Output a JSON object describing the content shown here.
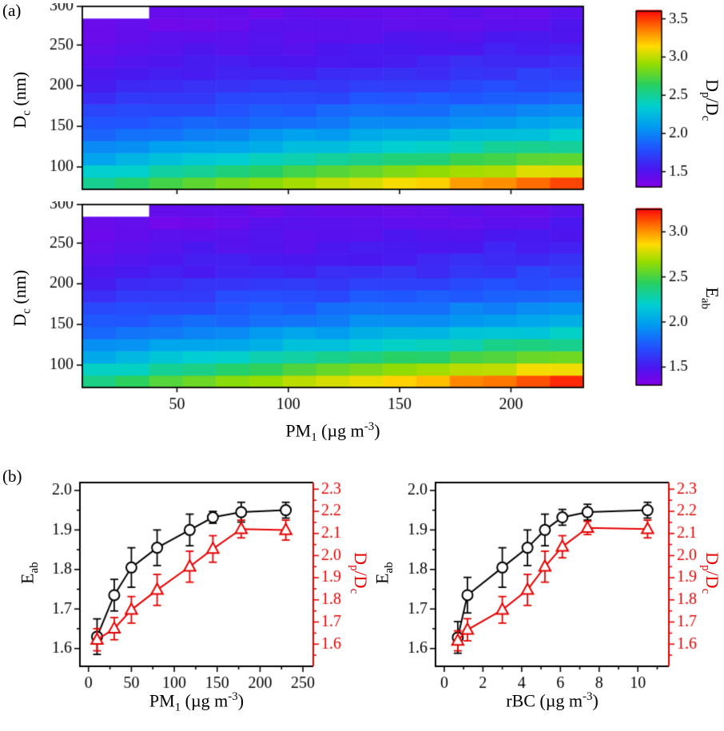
{
  "panel_labels": {
    "a": "(a)",
    "b": "(b)"
  },
  "labels": {
    "dc_main": "D",
    "dc_sub": "c",
    "dc_units": " (nm)",
    "eab_main": "E",
    "eab_sub": "ab",
    "dpdc_d": "D",
    "dpdc_p": "p",
    "dpdc_slash": "/",
    "dpdc_d2": "D",
    "dpdc_c": "c",
    "pm1_main": "PM",
    "pm1_sub": "1",
    "rbc_main": "rBC",
    "units_open": " (µg m",
    "units_sup": "-3",
    "units_close": ")"
  },
  "colors": {
    "axis_red": "#e60000",
    "axis_black": "#000000"
  },
  "chart_data": [
    {
      "type": "heatmap",
      "name": "dpdc_vs_pm1_and_dc",
      "colorbar_label": "Dp/Dc",
      "x_label": "PM1 (ug m-3)",
      "y_label": "Dc (nm)",
      "x": [
        15,
        30,
        45,
        60,
        75,
        90,
        105,
        120,
        135,
        150,
        165,
        180,
        195,
        210,
        225
      ],
      "y": [
        80,
        95,
        110,
        125,
        140,
        155,
        170,
        185,
        200,
        215,
        230,
        245,
        260,
        275,
        290
      ],
      "vmin": 1.3,
      "vmax": 3.6,
      "xlim": [
        7.5,
        232.5
      ],
      "ylim": [
        72.5,
        297.5
      ],
      "x_ticks": [
        50,
        100,
        150,
        200
      ],
      "y_ticks": [
        100,
        150,
        200,
        250,
        300
      ],
      "colorbar_ticks": [
        1.5,
        2.0,
        2.5,
        3.0,
        3.5
      ],
      "values": [
        [
          2.55,
          2.62,
          2.68,
          2.75,
          2.81,
          2.88,
          2.94,
          3.01,
          3.07,
          3.14,
          3.2,
          3.27,
          3.33,
          3.4,
          3.46
        ],
        [
          2.34,
          2.39,
          2.45,
          2.5,
          2.55,
          2.61,
          2.66,
          2.72,
          2.77,
          2.82,
          2.88,
          2.93,
          2.98,
          3.04,
          3.09
        ],
        [
          2.16,
          2.21,
          2.25,
          2.3,
          2.34,
          2.38,
          2.43,
          2.47,
          2.52,
          2.56,
          2.61,
          2.65,
          2.7,
          2.74,
          2.79
        ],
        [
          2.01,
          2.05,
          2.09,
          2.12,
          2.16,
          2.2,
          2.24,
          2.27,
          2.31,
          2.35,
          2.38,
          2.42,
          2.46,
          2.49,
          2.53
        ],
        [
          1.89,
          1.92,
          1.95,
          1.98,
          2.01,
          2.05,
          2.08,
          2.11,
          2.14,
          2.17,
          2.2,
          2.23,
          2.26,
          2.29,
          2.32
        ],
        [
          1.79,
          1.82,
          1.84,
          1.87,
          1.89,
          1.92,
          1.94,
          1.97,
          1.99,
          2.02,
          2.04,
          2.07,
          2.1,
          2.12,
          2.15
        ],
        [
          1.71,
          1.73,
          1.75,
          1.77,
          1.79,
          1.81,
          1.83,
          1.85,
          1.88,
          1.9,
          1.92,
          1.94,
          1.96,
          1.98,
          2.0
        ],
        [
          1.64,
          1.66,
          1.67,
          1.69,
          1.71,
          1.72,
          1.74,
          1.76,
          1.78,
          1.79,
          1.81,
          1.83,
          1.85,
          1.86,
          1.88
        ],
        [
          1.58,
          1.59,
          1.61,
          1.62,
          1.64,
          1.65,
          1.67,
          1.68,
          1.7,
          1.71,
          1.72,
          1.74,
          1.75,
          1.77,
          1.78
        ],
        [
          1.53,
          1.54,
          1.56,
          1.57,
          1.58,
          1.59,
          1.6,
          1.62,
          1.63,
          1.64,
          1.65,
          1.66,
          1.68,
          1.69,
          1.7
        ],
        [
          1.49,
          1.5,
          1.51,
          1.52,
          1.53,
          1.54,
          1.55,
          1.56,
          1.57,
          1.58,
          1.59,
          1.6,
          1.61,
          1.62,
          1.63
        ],
        [
          1.46,
          1.47,
          1.48,
          1.48,
          1.49,
          1.5,
          1.51,
          1.52,
          1.52,
          1.53,
          1.54,
          1.55,
          1.56,
          1.57,
          1.57
        ],
        [
          1.43,
          1.44,
          1.45,
          1.45,
          1.46,
          1.47,
          1.47,
          1.48,
          1.49,
          1.49,
          1.5,
          1.51,
          1.51,
          1.52,
          1.53
        ],
        [
          1.41,
          1.42,
          1.42,
          1.43,
          1.43,
          1.44,
          1.44,
          1.45,
          1.46,
          1.46,
          1.47,
          1.47,
          1.48,
          1.48,
          1.49
        ],
        [
          null,
          null,
          1.4,
          1.4,
          1.41,
          1.41,
          1.42,
          1.42,
          1.43,
          1.43,
          1.44,
          1.44,
          1.45,
          1.45,
          1.46
        ]
      ]
    },
    {
      "type": "heatmap",
      "name": "eab_vs_pm1_and_dc",
      "colorbar_label": "Eab",
      "x_label": "PM1 (ug m-3)",
      "y_label": "Dc (nm)",
      "x": [
        15,
        30,
        45,
        60,
        75,
        90,
        105,
        120,
        135,
        150,
        165,
        180,
        195,
        210,
        225
      ],
      "y": [
        80,
        95,
        110,
        125,
        140,
        155,
        170,
        185,
        200,
        215,
        230,
        245,
        260,
        275,
        290
      ],
      "vmin": 1.3,
      "vmax": 3.25,
      "xlim": [
        7.5,
        232.5
      ],
      "ylim": [
        72.5,
        297.5
      ],
      "x_ticks": [
        50,
        100,
        150,
        200
      ],
      "y_ticks": [
        100,
        150,
        200,
        250,
        300
      ],
      "colorbar_ticks": [
        1.5,
        2.0,
        2.5,
        3.0
      ],
      "values": [
        [
          2.39,
          2.45,
          2.5,
          2.56,
          2.61,
          2.67,
          2.73,
          2.79,
          2.84,
          2.9,
          2.95,
          3.01,
          3.07,
          3.13,
          3.18
        ],
        [
          2.2,
          2.25,
          2.3,
          2.34,
          2.39,
          2.44,
          2.48,
          2.54,
          2.58,
          2.62,
          2.67,
          2.72,
          2.76,
          2.81,
          2.86
        ],
        [
          2.05,
          2.09,
          2.13,
          2.17,
          2.2,
          2.24,
          2.28,
          2.32,
          2.36,
          2.4,
          2.44,
          2.47,
          2.52,
          2.55,
          2.6
        ],
        [
          1.92,
          1.95,
          1.99,
          2.01,
          2.05,
          2.08,
          2.12,
          2.14,
          2.18,
          2.21,
          2.24,
          2.27,
          2.31,
          2.34,
          2.37
        ],
        [
          1.81,
          1.84,
          1.87,
          1.89,
          1.92,
          1.95,
          1.98,
          2.0,
          2.03,
          2.06,
          2.08,
          2.11,
          2.14,
          2.16,
          2.19
        ],
        [
          1.73,
          1.75,
          1.77,
          1.8,
          1.81,
          1.84,
          1.86,
          1.88,
          1.9,
          1.93,
          1.94,
          1.97,
          2.0,
          2.01,
          2.04
        ],
        [
          1.66,
          1.67,
          1.69,
          1.71,
          1.73,
          1.74,
          1.76,
          1.78,
          1.8,
          1.82,
          1.84,
          1.86,
          1.87,
          1.89,
          1.91
        ],
        [
          1.6,
          1.61,
          1.62,
          1.64,
          1.66,
          1.67,
          1.68,
          1.7,
          1.72,
          1.73,
          1.74,
          1.76,
          1.78,
          1.79,
          1.8
        ],
        [
          1.54,
          1.55,
          1.57,
          1.58,
          1.6,
          1.6,
          1.62,
          1.63,
          1.65,
          1.66,
          1.67,
          1.68,
          1.69,
          1.71,
          1.72
        ],
        [
          1.5,
          1.51,
          1.53,
          1.53,
          1.54,
          1.55,
          1.56,
          1.58,
          1.59,
          1.6,
          1.6,
          1.61,
          1.63,
          1.64,
          1.65
        ],
        [
          1.47,
          1.47,
          1.48,
          1.49,
          1.5,
          1.51,
          1.52,
          1.53,
          1.53,
          1.54,
          1.55,
          1.56,
          1.57,
          1.58,
          1.59
        ],
        [
          1.44,
          1.45,
          1.46,
          1.46,
          1.47,
          1.47,
          1.48,
          1.49,
          1.49,
          1.5,
          1.51,
          1.52,
          1.53,
          1.53,
          1.53
        ],
        [
          1.41,
          1.42,
          1.43,
          1.43,
          1.44,
          1.45,
          1.45,
          1.46,
          1.47,
          1.47,
          1.47,
          1.48,
          1.48,
          1.49,
          1.5
        ],
        [
          1.4,
          1.4,
          1.4,
          1.41,
          1.41,
          1.42,
          1.42,
          1.43,
          1.44,
          1.44,
          1.45,
          1.45,
          1.46,
          1.46,
          1.47
        ],
        [
          null,
          null,
          1.39,
          1.39,
          1.4,
          1.4,
          1.4,
          1.4,
          1.41,
          1.41,
          1.42,
          1.42,
          1.43,
          1.43,
          1.44
        ]
      ]
    },
    {
      "type": "line",
      "name": "eab_dpdc_vs_pm1",
      "x_label": "PM1 (ug m-3)",
      "xlim": [
        -10,
        262
      ],
      "x_ticks": [
        0,
        50,
        100,
        150,
        200,
        250
      ],
      "left_axis": {
        "label": "Eab",
        "lim": [
          1.555,
          2.02
        ],
        "ticks": [
          1.6,
          1.7,
          1.8,
          1.9,
          2.0
        ]
      },
      "right_axis": {
        "label": "Dp/Dc",
        "lim": [
          1.5,
          2.33
        ],
        "ticks": [
          1.6,
          1.7,
          1.8,
          1.9,
          2.0,
          2.1,
          2.2,
          2.3
        ]
      },
      "series": [
        {
          "name": "Eab",
          "axis": "left",
          "marker": "circle",
          "color": "#000000",
          "x": [
            10,
            30,
            50,
            80,
            118,
            145,
            178,
            230
          ],
          "y": [
            1.63,
            1.735,
            1.805,
            1.855,
            1.9,
            1.932,
            1.945,
            1.95
          ],
          "yerr": [
            0.045,
            0.04,
            0.05,
            0.045,
            0.04,
            0.015,
            0.025,
            0.02
          ]
        },
        {
          "name": "Dp/Dc",
          "axis": "right",
          "marker": "triangle",
          "color": "#e60000",
          "x": [
            10,
            30,
            50,
            80,
            118,
            145,
            178,
            230
          ],
          "y": [
            1.62,
            1.67,
            1.755,
            1.845,
            1.95,
            2.03,
            2.12,
            2.115
          ],
          "yerr": [
            0.05,
            0.05,
            0.06,
            0.07,
            0.07,
            0.06,
            0.04,
            0.045
          ]
        }
      ]
    },
    {
      "type": "line",
      "name": "eab_dpdc_vs_rbc",
      "x_label": "rBC (ug m-3)",
      "xlim": [
        -0.45,
        11.6
      ],
      "x_ticks": [
        0,
        2,
        4,
        6,
        8,
        10
      ],
      "left_axis": {
        "label": "Eab",
        "lim": [
          1.555,
          2.02
        ],
        "ticks": [
          1.6,
          1.7,
          1.8,
          1.9,
          2.0
        ]
      },
      "right_axis": {
        "label": "Dp/Dc",
        "lim": [
          1.5,
          2.33
        ],
        "ticks": [
          1.6,
          1.7,
          1.8,
          1.9,
          2.0,
          2.1,
          2.2,
          2.3
        ]
      },
      "series": [
        {
          "name": "Eab",
          "axis": "left",
          "marker": "circle",
          "color": "#000000",
          "x": [
            0.7,
            1.2,
            3.0,
            4.3,
            5.2,
            6.1,
            7.4,
            10.5
          ],
          "y": [
            1.628,
            1.735,
            1.805,
            1.855,
            1.9,
            1.932,
            1.945,
            1.95
          ],
          "yerr": [
            0.04,
            0.045,
            0.05,
            0.045,
            0.04,
            0.02,
            0.02,
            0.02
          ]
        },
        {
          "name": "Dp/Dc",
          "axis": "right",
          "marker": "triangle",
          "color": "#e60000",
          "x": [
            0.7,
            1.2,
            3.0,
            4.3,
            5.2,
            6.1,
            7.4,
            10.5
          ],
          "y": [
            1.615,
            1.665,
            1.755,
            1.845,
            1.95,
            2.04,
            2.125,
            2.12
          ],
          "yerr": [
            0.045,
            0.05,
            0.06,
            0.07,
            0.07,
            0.05,
            0.03,
            0.04
          ]
        }
      ]
    }
  ]
}
